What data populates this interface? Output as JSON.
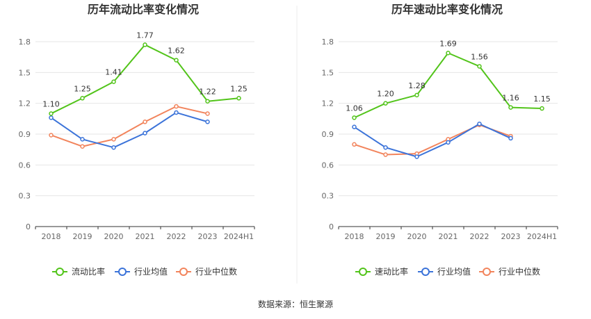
{
  "source_text": "数据来源：恒生聚源",
  "chart_data": [
    {
      "type": "line",
      "title": "历年流动比率变化情况",
      "categories": [
        "2018",
        "2019",
        "2020",
        "2021",
        "2022",
        "2023",
        "2024H1"
      ],
      "ylim": [
        0,
        1.8
      ],
      "yticks": [
        "0",
        "0.3",
        "0.6",
        "0.9",
        "1.2",
        "1.5",
        "1.8"
      ],
      "grid": true,
      "legend_position": "bottom",
      "series": [
        {
          "name": "流动比率",
          "color": "#52c41a",
          "labeled": true,
          "values": [
            1.1,
            1.25,
            1.41,
            1.77,
            1.62,
            1.22,
            1.25
          ]
        },
        {
          "name": "行业均值",
          "color": "#3b73d9",
          "labeled": false,
          "values": [
            1.06,
            0.85,
            0.77,
            0.91,
            1.11,
            1.02,
            null
          ]
        },
        {
          "name": "行业中位数",
          "color": "#f2845c",
          "labeled": false,
          "values": [
            0.89,
            0.78,
            0.85,
            1.02,
            1.17,
            1.1,
            null
          ]
        }
      ],
      "data_labels": [
        "1.10",
        "1.25",
        "1.41",
        "1.77",
        "1.62",
        "1.22",
        "1.25"
      ]
    },
    {
      "type": "line",
      "title": "历年速动比率变化情况",
      "categories": [
        "2018",
        "2019",
        "2020",
        "2021",
        "2022",
        "2023",
        "2024H1"
      ],
      "ylim": [
        0,
        1.8
      ],
      "yticks": [
        "0",
        "0.3",
        "0.6",
        "0.9",
        "1.2",
        "1.5",
        "1.8"
      ],
      "grid": true,
      "legend_position": "bottom",
      "series": [
        {
          "name": "速动比率",
          "color": "#52c41a",
          "labeled": true,
          "values": [
            1.06,
            1.2,
            1.28,
            1.69,
            1.56,
            1.16,
            1.15
          ]
        },
        {
          "name": "行业均值",
          "color": "#3b73d9",
          "labeled": false,
          "values": [
            0.97,
            0.77,
            0.68,
            0.82,
            1.0,
            0.86,
            null
          ]
        },
        {
          "name": "行业中位数",
          "color": "#f2845c",
          "labeled": false,
          "values": [
            0.8,
            0.7,
            0.71,
            0.85,
            0.99,
            0.88,
            null
          ]
        }
      ],
      "data_labels": [
        "1.06",
        "1.20",
        "1.28",
        "1.69",
        "1.56",
        "1.16",
        "1.15"
      ]
    }
  ]
}
